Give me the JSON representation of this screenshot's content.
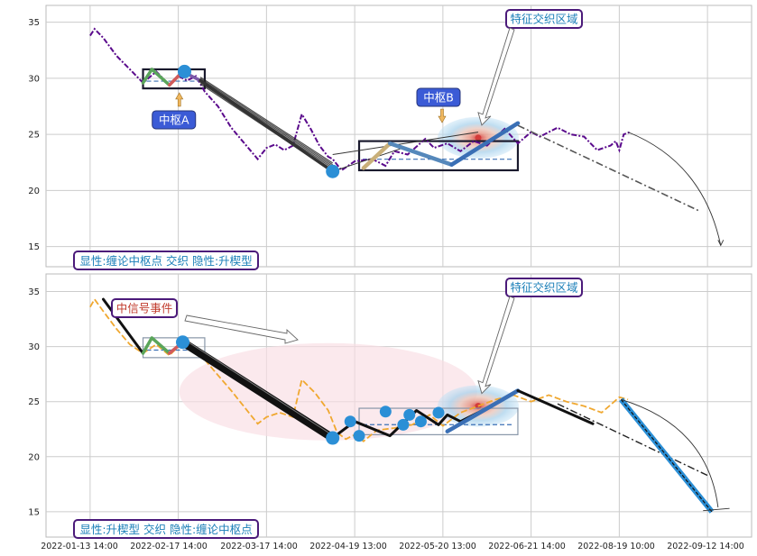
{
  "colors": {
    "grid": "#cccccc",
    "frame": "#bbbbbb",
    "price_top": "#5a0a8c",
    "price_bottom": "#f0a830",
    "dot": "#2b8fd6",
    "label_text": "#1a7fb8",
    "label_border": "#4b1a7a",
    "hub_box": "#1a1a2e",
    "hub_label_bg": "#3b5bd6",
    "ellipse": "#f9dde3"
  },
  "chart_data": [
    {
      "type": "line",
      "panel": "top",
      "x_ticks": [
        "2022-01-13 14:00",
        "2022-02-17 14:00",
        "2022-03-17 14:00",
        "2022-04-19 13:00",
        "2022-05-20 13:00",
        "2022-06-21 14:00",
        "2022-08-19 10:00",
        "2022-09-12 14:00"
      ],
      "y_ticks": [
        15,
        20,
        25,
        30,
        35
      ],
      "ylim": [
        13.2,
        36.5
      ],
      "x_range": [
        -0.5,
        7.5
      ],
      "price": [
        [
          0,
          33.8
        ],
        [
          0.05,
          34.4
        ],
        [
          0.15,
          33.6
        ],
        [
          0.3,
          32.0
        ],
        [
          0.45,
          30.8
        ],
        [
          0.6,
          29.6
        ],
        [
          0.75,
          30.6
        ],
        [
          0.9,
          29.4
        ],
        [
          1.0,
          30.2
        ],
        [
          1.1,
          29.8
        ],
        [
          1.2,
          30.2
        ],
        [
          1.3,
          28.8
        ],
        [
          1.45,
          27.5
        ],
        [
          1.6,
          25.6
        ],
        [
          1.75,
          24.2
        ],
        [
          1.9,
          22.8
        ],
        [
          2.0,
          23.8
        ],
        [
          2.1,
          24.1
        ],
        [
          2.2,
          23.6
        ],
        [
          2.3,
          24.0
        ],
        [
          2.4,
          26.8
        ],
        [
          2.5,
          25.5
        ],
        [
          2.6,
          24.0
        ],
        [
          2.7,
          23.0
        ],
        [
          2.75,
          22.8
        ],
        [
          2.85,
          21.8
        ],
        [
          3.0,
          22.6
        ],
        [
          3.2,
          22.8
        ],
        [
          3.35,
          22.2
        ],
        [
          3.45,
          23.5
        ],
        [
          3.6,
          23.2
        ],
        [
          3.8,
          24.6
        ],
        [
          3.9,
          23.8
        ],
        [
          4.05,
          24.2
        ],
        [
          4.2,
          23.5
        ],
        [
          4.35,
          24.4
        ],
        [
          4.5,
          24.0
        ],
        [
          4.7,
          25.5
        ],
        [
          4.85,
          24.2
        ],
        [
          5.0,
          25.2
        ],
        [
          5.1,
          24.8
        ],
        [
          5.3,
          25.6
        ],
        [
          5.45,
          25.0
        ],
        [
          5.6,
          24.8
        ],
        [
          5.75,
          23.6
        ],
        [
          5.9,
          24.0
        ],
        [
          5.96,
          24.4
        ],
        [
          6.0,
          23.6
        ],
        [
          6.05,
          25.0
        ],
        [
          6.12,
          25.2
        ]
      ],
      "strokes": [
        {
          "points": [
            [
              0.6,
              29.6
            ],
            [
              0.7,
              30.8
            ],
            [
              0.9,
              29.4
            ]
          ],
          "color": "#5aa55a"
        },
        {
          "points": [
            [
              0.9,
              29.4
            ],
            [
              1.05,
              30.6
            ]
          ],
          "color": "#d05a5a"
        },
        {
          "points": [
            [
              1.05,
              30.6
            ],
            [
              1.25,
              29.8
            ]
          ],
          "color": "#7b5aa8"
        },
        {
          "points": [
            [
              1.25,
              29.8
            ],
            [
              2.75,
              21.7
            ]
          ],
          "color": "#333333"
        },
        {
          "points": [
            [
              3.1,
              22.0
            ],
            [
              3.4,
              24.2
            ]
          ],
          "color": "#c9b07a"
        },
        {
          "points": [
            [
              3.4,
              24.2
            ],
            [
              4.1,
              22.3
            ]
          ],
          "color": "#5588bb"
        },
        {
          "points": [
            [
              4.1,
              22.3
            ],
            [
              4.85,
              26.0
            ]
          ],
          "color": "#3a6fb5"
        }
      ],
      "pivot_points": [
        [
          1.07,
          30.6
        ],
        [
          2.75,
          21.7
        ]
      ],
      "hubs": [
        {
          "label": "中枢A",
          "x0": 0.6,
          "x1": 1.3,
          "y0": 29.1,
          "y1": 30.8,
          "label_x": 0.95,
          "label_y": 26.3
        },
        {
          "label": "中枢B",
          "x0": 3.05,
          "x1": 4.85,
          "y0": 21.8,
          "y1": 24.4,
          "label_x": 3.95,
          "label_y": 28.3
        }
      ],
      "feature_label": "特征交织区域",
      "feature_point": [
        4.4,
        24.7
      ],
      "annotation": "显性:缠论中枢点 交织 隐性:升楔型"
    },
    {
      "type": "line",
      "panel": "bottom",
      "x_ticks": [
        "2022-01-13 14:00",
        "2022-02-17 14:00",
        "2022-03-17 14:00",
        "2022-04-19 13:00",
        "2022-05-20 13:00",
        "2022-06-21 14:00",
        "2022-08-19 10:00",
        "2022-09-12 14:00"
      ],
      "y_ticks": [
        15,
        20,
        25,
        30,
        35
      ],
      "ylim": [
        12.7,
        36.6
      ],
      "x_range": [
        -0.5,
        7.5
      ],
      "price": [
        [
          0,
          33.6
        ],
        [
          0.05,
          34.3
        ],
        [
          0.15,
          33.2
        ],
        [
          0.3,
          31.6
        ],
        [
          0.45,
          30.2
        ],
        [
          0.6,
          29.4
        ],
        [
          0.75,
          30.2
        ],
        [
          0.9,
          29.2
        ],
        [
          1.05,
          30.4
        ],
        [
          1.2,
          29.6
        ],
        [
          1.3,
          28.8
        ],
        [
          1.45,
          27.4
        ],
        [
          1.6,
          26.0
        ],
        [
          1.75,
          24.5
        ],
        [
          1.9,
          23.0
        ],
        [
          2.0,
          23.6
        ],
        [
          2.15,
          24.0
        ],
        [
          2.3,
          23.6
        ],
        [
          2.4,
          27.0
        ],
        [
          2.55,
          25.8
        ],
        [
          2.7,
          24.2
        ],
        [
          2.8,
          22.2
        ],
        [
          2.9,
          21.6
        ],
        [
          3.0,
          22.0
        ],
        [
          3.1,
          21.4
        ],
        [
          3.25,
          22.4
        ],
        [
          3.45,
          22.6
        ],
        [
          3.65,
          22.9
        ],
        [
          3.85,
          23.8
        ],
        [
          4.0,
          22.8
        ],
        [
          4.2,
          24.0
        ],
        [
          4.4,
          24.6
        ],
        [
          4.6,
          25.2
        ],
        [
          4.8,
          25.6
        ],
        [
          5.0,
          25.0
        ],
        [
          5.2,
          25.6
        ],
        [
          5.4,
          25.0
        ],
        [
          5.6,
          24.6
        ],
        [
          5.8,
          24.0
        ],
        [
          6.0,
          25.4
        ],
        [
          6.1,
          25.2
        ]
      ],
      "strokes": [
        {
          "points": [
            [
              0.15,
              34.3
            ],
            [
              0.6,
              29.4
            ]
          ],
          "color": "#111111"
        },
        {
          "points": [
            [
              0.6,
              29.4
            ],
            [
              0.7,
              30.8
            ],
            [
              0.9,
              29.4
            ]
          ],
          "color": "#5aa55a"
        },
        {
          "points": [
            [
              0.9,
              29.4
            ],
            [
              1.05,
              30.4
            ]
          ],
          "color": "#d05a5a"
        },
        {
          "points": [
            [
              2.75,
              21.7
            ],
            [
              3.0,
              23.2
            ],
            [
              3.4,
              21.9
            ],
            [
              3.7,
              24.2
            ],
            [
              3.95,
              22.9
            ],
            [
              4.05,
              23.8
            ],
            [
              4.2,
              23.2
            ],
            [
              4.4,
              24.0
            ],
            [
              4.85,
              26.0
            ]
          ],
          "color": "#111111"
        },
        {
          "points": [
            [
              4.05,
              22.3
            ],
            [
              4.85,
              26.0
            ]
          ],
          "color": "#3a6fb5"
        },
        {
          "points": [
            [
              4.85,
              26.0
            ],
            [
              5.7,
              23.0
            ]
          ],
          "color": "#111111"
        }
      ],
      "thick_stroke": [
        [
          1.05,
          30.4
        ],
        [
          2.75,
          21.7
        ]
      ],
      "pivot_points": [
        [
          1.05,
          30.4
        ],
        [
          2.75,
          21.7
        ],
        [
          2.95,
          23.2
        ],
        [
          3.05,
          21.9
        ],
        [
          3.35,
          24.1
        ],
        [
          3.55,
          22.9
        ],
        [
          3.62,
          23.8
        ],
        [
          3.75,
          23.2
        ],
        [
          3.95,
          24.0
        ]
      ],
      "projection": [
        [
          6.02,
          25.2
        ],
        [
          7.05,
          15.0
        ]
      ],
      "hubs": [
        {
          "label": "",
          "x0": 0.6,
          "x1": 1.3,
          "y0": 29.0,
          "y1": 30.8
        },
        {
          "label": "",
          "x0": 3.05,
          "x1": 4.85,
          "y0": 22.0,
          "y1": 24.4
        }
      ],
      "signal_label": "中信号事件",
      "feature_label": "特征交织区域",
      "feature_point": [
        4.4,
        24.6
      ],
      "annotation": "显性:升楔型 交织 隐性:缠论中枢点"
    }
  ]
}
